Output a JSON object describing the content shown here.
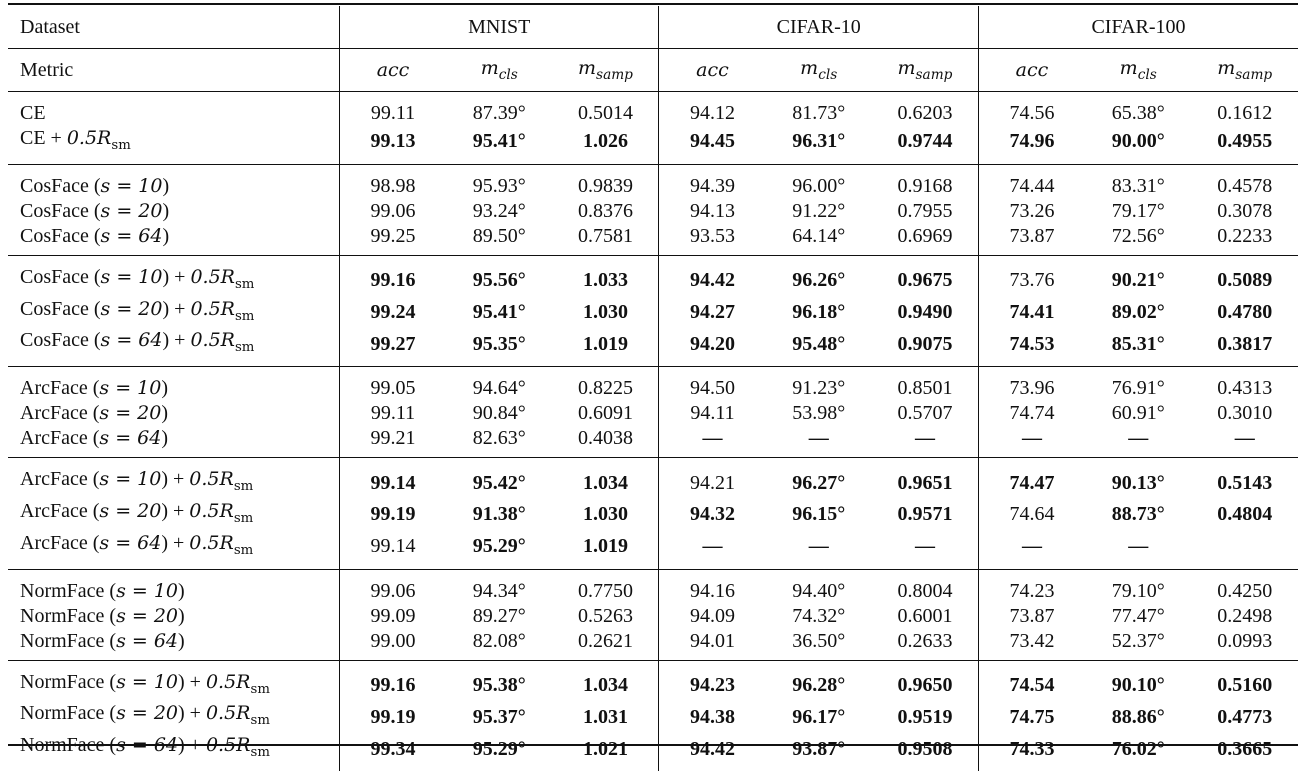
{
  "table": {
    "header": {
      "dataset_label": "Dataset",
      "datasets": [
        "MNIST",
        "CIFAR-10",
        "CIFAR-100"
      ],
      "metric_label": "Metric",
      "metrics": [
        "acc",
        "m_cls",
        "m_samp"
      ]
    },
    "groups": [
      {
        "rows": [
          {
            "label": "CE",
            "values": [
              "99.11",
              "87.39°",
              "0.5014",
              "94.12",
              "81.73°",
              "0.6203",
              "74.56",
              "65.38°",
              "0.1612"
            ],
            "bold": []
          },
          {
            "label": "CE + 0.5R_sm",
            "values": [
              "99.13",
              "95.41°",
              "1.026",
              "94.45",
              "96.31°",
              "0.9744",
              "74.96",
              "90.00°",
              "0.4955"
            ],
            "bold": [
              0,
              1,
              2,
              3,
              4,
              5,
              6,
              7,
              8
            ]
          }
        ]
      },
      {
        "rows": [
          {
            "label": "CosFace (s = 10)",
            "values": [
              "98.98",
              "95.93°",
              "0.9839",
              "94.39",
              "96.00°",
              "0.9168",
              "74.44",
              "83.31°",
              "0.4578"
            ],
            "bold": []
          },
          {
            "label": "CosFace (s = 20)",
            "values": [
              "99.06",
              "93.24°",
              "0.8376",
              "94.13",
              "91.22°",
              "0.7955",
              "73.26",
              "79.17°",
              "0.3078"
            ],
            "bold": []
          },
          {
            "label": "CosFace (s = 64)",
            "values": [
              "99.25",
              "89.50°",
              "0.7581",
              "93.53",
              "64.14°",
              "0.6969",
              "73.87",
              "72.56°",
              "0.2233"
            ],
            "bold": []
          }
        ]
      },
      {
        "rows": [
          {
            "label": "CosFace (s = 10) + 0.5R_sm",
            "values": [
              "99.16",
              "95.56°",
              "1.033",
              "94.42",
              "96.26°",
              "0.9675",
              "73.76",
              "90.21°",
              "0.5089"
            ],
            "bold": [
              0,
              1,
              2,
              3,
              4,
              5,
              7,
              8
            ]
          },
          {
            "label": "CosFace (s = 20) + 0.5R_sm",
            "values": [
              "99.24",
              "95.41°",
              "1.030",
              "94.27",
              "96.18°",
              "0.9490",
              "74.41",
              "89.02°",
              "0.4780"
            ],
            "bold": [
              0,
              1,
              2,
              3,
              4,
              5,
              6,
              7,
              8
            ]
          },
          {
            "label": "CosFace (s = 64) + 0.5R_sm",
            "values": [
              "99.27",
              "95.35°",
              "1.019",
              "94.20",
              "95.48°",
              "0.9075",
              "74.53",
              "85.31°",
              "0.3817"
            ],
            "bold": [
              0,
              1,
              2,
              3,
              4,
              5,
              6,
              7,
              8
            ]
          }
        ]
      },
      {
        "rows": [
          {
            "label": "ArcFace (s = 10)",
            "values": [
              "99.05",
              "94.64°",
              "0.8225",
              "94.50",
              "91.23°",
              "0.8501",
              "73.96",
              "76.91°",
              "0.4313"
            ],
            "bold": []
          },
          {
            "label": "ArcFace (s = 20)",
            "values": [
              "99.11",
              "90.84°",
              "0.6091",
              "94.11",
              "53.98°",
              "0.5707",
              "74.74",
              "60.91°",
              "0.3010"
            ],
            "bold": []
          },
          {
            "label": "ArcFace (s = 64)",
            "values": [
              "99.21",
              "82.63°",
              "0.4038",
              "—",
              "—",
              "—",
              "—",
              "—",
              "—"
            ],
            "bold": []
          }
        ]
      },
      {
        "rows": [
          {
            "label": "ArcFace (s = 10) + 0.5R_sm",
            "values": [
              "99.14",
              "95.42°",
              "1.034",
              "94.21",
              "96.27°",
              "0.9651",
              "74.47",
              "90.13°",
              "0.5143"
            ],
            "bold": [
              0,
              1,
              2,
              4,
              5,
              6,
              7,
              8
            ]
          },
          {
            "label": "ArcFace (s = 20) + 0.5R_sm",
            "values": [
              "99.19",
              "91.38°",
              "1.030",
              "94.32",
              "96.15°",
              "0.9571",
              "74.64",
              "88.73°",
              "0.4804"
            ],
            "bold": [
              0,
              1,
              2,
              3,
              4,
              5,
              7,
              8
            ]
          },
          {
            "label": "ArcFace (s = 64) + 0.5R_sm",
            "values": [
              "99.14",
              "95.29°",
              "1.019",
              "—",
              "—",
              "—",
              "—",
              "—",
              ""
            ],
            "bold": [
              1,
              2
            ]
          }
        ]
      },
      {
        "rows": [
          {
            "label": "NormFace (s = 10)",
            "values": [
              "99.06",
              "94.34°",
              "0.7750",
              "94.16",
              "94.40°",
              "0.8004",
              "74.23",
              "79.10°",
              "0.4250"
            ],
            "bold": []
          },
          {
            "label": "NormFace (s = 20)",
            "values": [
              "99.09",
              "89.27°",
              "0.5263",
              "94.09",
              "74.32°",
              "0.6001",
              "73.87",
              "77.47°",
              "0.2498"
            ],
            "bold": []
          },
          {
            "label": "NormFace (s = 64)",
            "values": [
              "99.00",
              "82.08°",
              "0.2621",
              "94.01",
              "36.50°",
              "0.2633",
              "73.42",
              "52.37°",
              "0.0993"
            ],
            "bold": []
          }
        ]
      },
      {
        "rows": [
          {
            "label": "NormFace (s = 10) + 0.5R_sm",
            "values": [
              "99.16",
              "95.38°",
              "1.034",
              "94.23",
              "96.28°",
              "0.9650",
              "74.54",
              "90.10°",
              "0.5160"
            ],
            "bold": [
              0,
              1,
              2,
              3,
              4,
              5,
              6,
              7,
              8
            ]
          },
          {
            "label": "NormFace (s = 20) + 0.5R_sm",
            "values": [
              "99.19",
              "95.37°",
              "1.031",
              "94.38",
              "96.17°",
              "0.9519",
              "74.75",
              "88.86°",
              "0.4773"
            ],
            "bold": [
              0,
              1,
              2,
              3,
              4,
              5,
              6,
              7,
              8
            ]
          },
          {
            "label": "NormFace (s = 64) + 0.5R_sm",
            "values": [
              "99.34",
              "95.29°",
              "1.021",
              "94.42",
              "93.87°",
              "0.9508",
              "74.33",
              "76.02°",
              "0.3665"
            ],
            "bold": [
              0,
              1,
              2,
              3,
              4,
              5,
              6,
              7,
              8
            ]
          }
        ]
      }
    ]
  }
}
